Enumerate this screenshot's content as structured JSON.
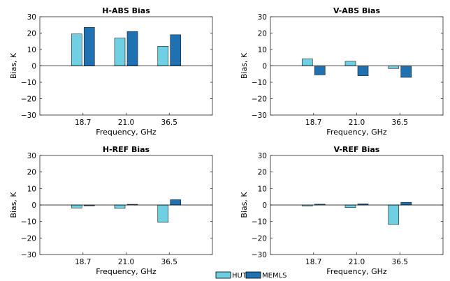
{
  "colors": {
    "HUT": "#6fcfe3",
    "MEMLS": "#1f71b2"
  },
  "legend": {
    "items": [
      "HUT",
      "MEMLS"
    ],
    "placement": "bottom-center"
  },
  "chart_data": [
    {
      "type": "bar",
      "title": "H-ABS Bias",
      "xlabel": "Frequency, GHz",
      "ylabel": "Bias, K",
      "categories": [
        "18.7",
        "21.0",
        "36.5"
      ],
      "ylim": [
        -30,
        30
      ],
      "yticks": [
        "−30",
        "−20",
        "−10",
        "0",
        "10",
        "20",
        "30"
      ],
      "grid": false,
      "series": [
        {
          "name": "HUT",
          "values": [
            19.5,
            17,
            12
          ]
        },
        {
          "name": "MEMLS",
          "values": [
            23.5,
            21,
            19
          ]
        }
      ]
    },
    {
      "type": "bar",
      "title": "V-ABS Bias",
      "xlabel": "Frequency, GHz",
      "ylabel": "Bias, K",
      "categories": [
        "18.7",
        "21.0",
        "36.5"
      ],
      "ylim": [
        -30,
        30
      ],
      "yticks": [
        "−30",
        "−20",
        "−10",
        "0",
        "10",
        "20",
        "30"
      ],
      "grid": false,
      "series": [
        {
          "name": "HUT",
          "values": [
            4.3,
            2.8,
            -1.6
          ]
        },
        {
          "name": "MEMLS",
          "values": [
            -5.5,
            -6,
            -7
          ]
        }
      ]
    },
    {
      "type": "bar",
      "title": "H-REF Bias",
      "xlabel": "Frequency, GHz",
      "ylabel": "Bias, K",
      "categories": [
        "18.7",
        "21.0",
        "36.5"
      ],
      "ylim": [
        -30,
        30
      ],
      "yticks": [
        "−30",
        "−20",
        "−10",
        "0",
        "10",
        "20",
        "30"
      ],
      "grid": false,
      "series": [
        {
          "name": "HUT",
          "values": [
            -1.8,
            -2,
            -10.5
          ]
        },
        {
          "name": "MEMLS",
          "values": [
            -0.5,
            0.4,
            3.2
          ]
        }
      ]
    },
    {
      "type": "bar",
      "title": "V-REF Bias",
      "xlabel": "Frequency, GHz",
      "ylabel": "Bias, K",
      "categories": [
        "18.7",
        "21.0",
        "36.5"
      ],
      "ylim": [
        -30,
        30
      ],
      "yticks": [
        "−30",
        "−20",
        "−10",
        "0",
        "10",
        "20",
        "30"
      ],
      "grid": false,
      "series": [
        {
          "name": "HUT",
          "values": [
            -0.6,
            -1.6,
            -11.8
          ]
        },
        {
          "name": "MEMLS",
          "values": [
            0.5,
            0.7,
            1.6
          ]
        }
      ]
    }
  ]
}
